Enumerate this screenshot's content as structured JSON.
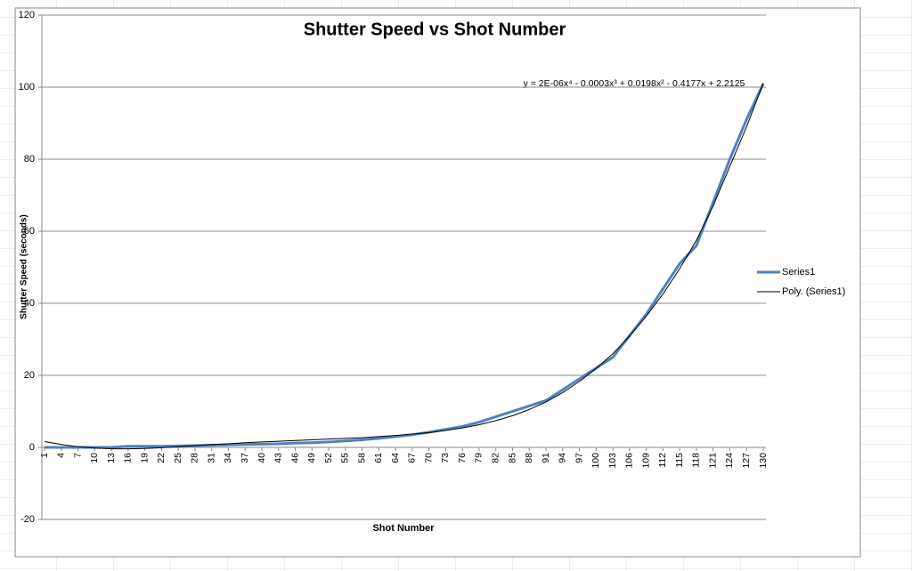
{
  "chart_data": {
    "type": "line",
    "title": "Shutter Speed vs Shot Number",
    "x_label": "Shot Number",
    "y_label": "Shutter Speed (seconds)",
    "annotation": "y = 2E-06x⁴ - 0.0003x³ + 0.0198x² - 0.4177x + 2.2125",
    "categories": [
      "1",
      "4",
      "7",
      "10",
      "13",
      "16",
      "19",
      "22",
      "25",
      "28",
      "31",
      "34",
      "37",
      "40",
      "43",
      "46",
      "49",
      "52",
      "55",
      "58",
      "61",
      "64",
      "67",
      "70",
      "73",
      "76",
      "79",
      "82",
      "85",
      "88",
      "91",
      "94",
      "97",
      "100",
      "103",
      "106",
      "109",
      "112",
      "115",
      "118",
      "121",
      "124",
      "127",
      "130"
    ],
    "series": [
      {
        "name": "Series1",
        "color": "#4f81bd",
        "width": 3,
        "values": [
          0,
          0,
          0,
          0,
          0,
          0.3,
          0.3,
          0.3,
          0.4,
          0.5,
          0.6,
          0.7,
          0.8,
          0.9,
          1,
          1.2,
          1.3,
          1.5,
          1.8,
          2.1,
          2.5,
          3,
          3.5,
          4.2,
          5,
          5.8,
          7,
          8.5,
          10,
          11.5,
          13,
          16,
          19,
          22,
          25,
          31,
          37,
          44,
          51,
          56,
          68,
          80,
          91,
          101
        ]
      },
      {
        "name": "Poly. (Series1)",
        "color": "#000000",
        "width": 1,
        "values": [
          1.6,
          0.8,
          0.2,
          -0.2,
          -0.4,
          -0.4,
          -0.3,
          -0.1,
          0.2,
          0.5,
          0.8,
          1.0,
          1.3,
          1.5,
          1.7,
          1.9,
          2.1,
          2.3,
          2.5,
          2.7,
          3.0,
          3.3,
          3.7,
          4.1,
          4.7,
          5.4,
          6.3,
          7.4,
          8.8,
          10.5,
          12.6,
          15.2,
          18.3,
          21.9,
          26,
          30.9,
          36.4,
          42.6,
          49.6,
          57.5,
          67,
          78,
          89,
          101
        ]
      }
    ],
    "ylim": [
      -20,
      120
    ],
    "yticks": [
      -20,
      0,
      20,
      40,
      60,
      80,
      100,
      120
    ],
    "grid": true,
    "legend": "right"
  }
}
